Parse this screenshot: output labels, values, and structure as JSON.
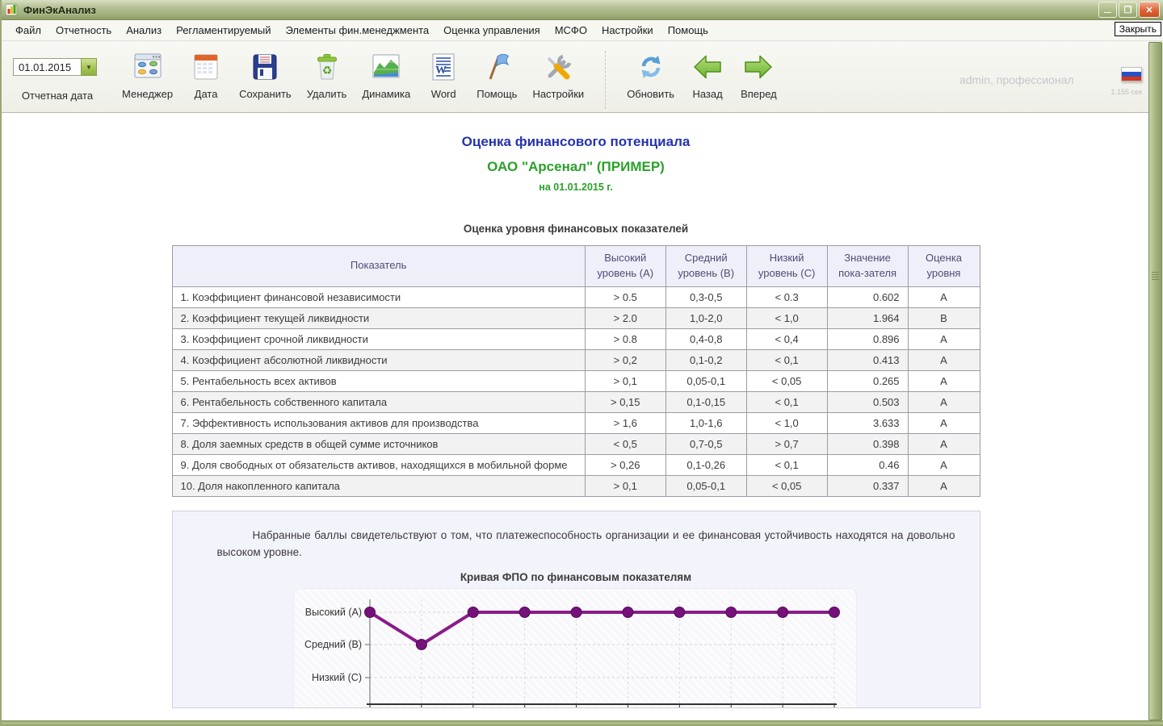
{
  "window": {
    "title": "ФинЭкАнализ",
    "tooltip_close": "Закрыть"
  },
  "menu": {
    "items": [
      "Файл",
      "Отчетность",
      "Анализ",
      "Регламентируемый",
      "Элементы фин.менеджмента",
      "Оценка управления",
      "МСФО",
      "Настройки",
      "Помощь"
    ]
  },
  "toolbar": {
    "report_date": {
      "value": "01.01.2015",
      "label": "Отчетная дата"
    },
    "buttons": [
      {
        "id": "manager",
        "label": "Менеджер",
        "icon": "manager-icon",
        "group": 1
      },
      {
        "id": "date",
        "label": "Дата",
        "icon": "calendar-icon",
        "group": 1
      },
      {
        "id": "save",
        "label": "Сохранить",
        "icon": "save-icon",
        "group": 1
      },
      {
        "id": "delete",
        "label": "Удалить",
        "icon": "trash-icon",
        "group": 1
      },
      {
        "id": "dynamics",
        "label": "Динамика",
        "icon": "chart-icon",
        "group": 1
      },
      {
        "id": "word",
        "label": "Word",
        "icon": "word-icon",
        "group": 1
      },
      {
        "id": "help",
        "label": "Помощь",
        "icon": "flag-icon",
        "group": 1
      },
      {
        "id": "settings",
        "label": "Настройки",
        "icon": "tools-icon",
        "group": 1
      },
      {
        "id": "refresh",
        "label": "Обновить",
        "icon": "refresh-icon",
        "group": 2
      },
      {
        "id": "back",
        "label": "Назад",
        "icon": "arrow-left-icon",
        "group": 2
      },
      {
        "id": "forward",
        "label": "Вперед",
        "icon": "arrow-right-icon",
        "group": 2
      }
    ],
    "user_status": "admin, профессионал",
    "timer": "1.155 сек",
    "flag": "russian-flag-icon"
  },
  "report": {
    "title": "Оценка финансового потенциала",
    "company": "ОАО \"Арсенал\" (ПРИМЕР)",
    "date_line": "на 01.01.2015 г.",
    "table_title": "Оценка уровня финансовых показателей",
    "table": {
      "headers": [
        "Показатель",
        "Высокий уровень (А)",
        "Средний уровень (В)",
        "Низкий уровень (С)",
        "Значение пока-зателя",
        "Оценка уровня"
      ],
      "rows": [
        [
          "1. Коэффициент финансовой независимости",
          "> 0.5",
          "0,3-0,5",
          "< 0.3",
          "0.602",
          "А"
        ],
        [
          "2. Коэффициент текущей ликвидности",
          "> 2.0",
          "1,0-2,0",
          "< 1,0",
          "1.964",
          "В"
        ],
        [
          "3. Коэффициент срочной ликвидности",
          "> 0.8",
          "0,4-0,8",
          "< 0,4",
          "0.896",
          "А"
        ],
        [
          "4. Коэффициент абсолютной ликвидности",
          "> 0,2",
          "0,1-0,2",
          "< 0,1",
          "0.413",
          "А"
        ],
        [
          "5. Рентабельность всех активов",
          "> 0,1",
          "0,05-0,1",
          "< 0,05",
          "0.265",
          "А"
        ],
        [
          "6. Рентабельность собственного капитала",
          "> 0,15",
          "0,1-0,15",
          "< 0,1",
          "0.503",
          "А"
        ],
        [
          "7. Эффективность использования активов для производства",
          "> 1,6",
          "1,0-1,6",
          "< 1,0",
          "3.633",
          "А"
        ],
        [
          "8. Доля заемных средств в общей сумме источников",
          "< 0,5",
          "0,7-0,5",
          "> 0,7",
          "0.398",
          "А"
        ],
        [
          "9. Доля свободных от обязательств активов, находящихся в мобильной форме",
          "> 0,26",
          "0,1-0,26",
          "< 0,1",
          "0.46",
          "А"
        ],
        [
          "10. Доля накопленного капитала",
          "> 0,1",
          "0,05-0,1",
          "< 0,05",
          "0.337",
          "А"
        ]
      ]
    },
    "summary": "Набранные баллы свидетельствуют о том, что платежеспособность организации и ее финансовая устойчивость находятся на довольно высоком уровне."
  },
  "chart_data": {
    "type": "line",
    "title": "Кривая ФПО по финансовым показателям",
    "y_categories": [
      "Высокий (А)",
      "Средний (В)",
      "Низкий (С)"
    ],
    "x": [
      1,
      2,
      3,
      4,
      5,
      6,
      7,
      8,
      9,
      10
    ],
    "values": [
      "А",
      "В",
      "А",
      "А",
      "А",
      "А",
      "А",
      "А",
      "А",
      "А"
    ],
    "xlabel": "",
    "ylabel": "",
    "grid": true,
    "legend": "none",
    "line_color": "#8a1b8a",
    "marker_color": "#76117a"
  },
  "colors": {
    "title_blue": "#2433ad",
    "company_green": "#2aa12a",
    "titlebar_olive": "#9dad78",
    "table_header_bg": "#efeff9",
    "panel_bg": "#f3f3fb"
  }
}
